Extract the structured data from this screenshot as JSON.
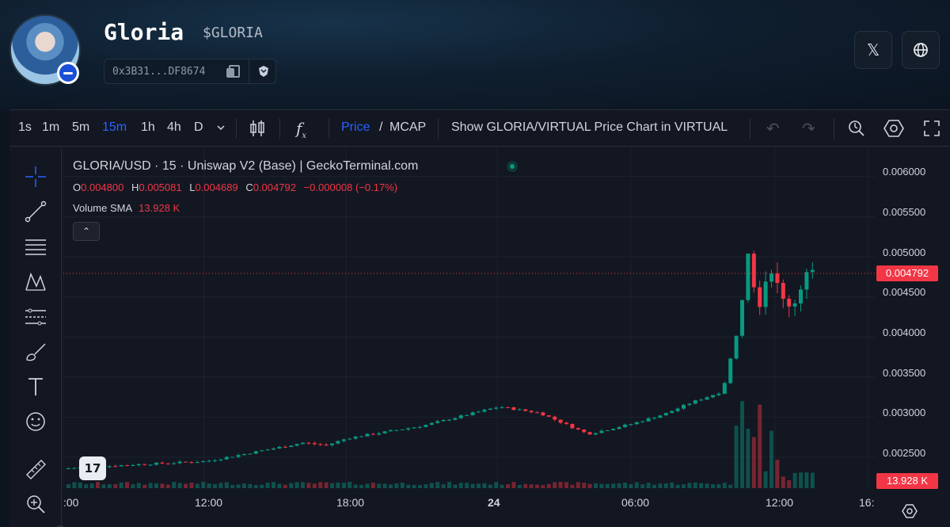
{
  "token": {
    "name": "Gloria",
    "symbol": "$GLORIA",
    "address": "0x3B31...DF8674"
  },
  "social": {
    "x_icon": "x-logo-icon",
    "web_icon": "globe-icon"
  },
  "toolbar": {
    "timeframes": [
      "1s",
      "1m",
      "5m",
      "15m",
      "1h",
      "4h",
      "D"
    ],
    "active_timeframe": "15m",
    "price_label": "Price",
    "slash": "/",
    "mcap_label": "MCAP",
    "convert_label": "Show GLORIA/VIRTUAL Price Chart in VIRTUAL"
  },
  "legend": {
    "title": "GLORIA/USD · 15 · Uniswap V2 (Base) | GeckoTerminal.com",
    "ohlc": {
      "o_key": "O",
      "o_val": "0.004800",
      "h_key": "H",
      "h_val": "0.005081",
      "l_key": "L",
      "l_val": "0.004689",
      "c_key": "C",
      "c_val": "0.004792",
      "change": "−0.000008 (−0.17%)"
    },
    "volume_label": "Volume SMA",
    "volume_value": "13.928 K"
  },
  "price_axis": {
    "labels": [
      "0.006000",
      "0.005500",
      "0.005000",
      "0.004500",
      "0.004000",
      "0.003500",
      "0.003000",
      "0.002500"
    ],
    "last_price_tag": "0.004792",
    "volume_tag": "13.928 K"
  },
  "time_axis": {
    "labels": [
      ":00",
      "12:00",
      "18:00",
      "24",
      "06:00",
      "12:00",
      "16:"
    ]
  },
  "logo_text": "17",
  "colors": {
    "up": "#089981",
    "down": "#f23645",
    "accent": "#2962ff",
    "background": "#131722"
  },
  "chart_data": {
    "type": "candlestick",
    "title": "GLORIA/USD · 15 · Uniswap V2 (Base) | GeckoTerminal.com",
    "ylim": [
      0.0021,
      0.0062
    ],
    "y_ticks": [
      0.0025,
      0.003,
      0.0035,
      0.004,
      0.0045,
      0.005,
      0.0055,
      0.006
    ],
    "series": [
      {
        "name": "GLORIA/USD",
        "close_trend": [
          {
            "t": "06:00",
            "close": 0.00236
          },
          {
            "t": "09:00",
            "close": 0.00241
          },
          {
            "t": "12:00",
            "close": 0.00245
          },
          {
            "t": "15:00",
            "close": 0.00262
          },
          {
            "t": "16:00",
            "close": 0.00268
          },
          {
            "t": "17:00",
            "close": 0.00265
          },
          {
            "t": "18:00",
            "close": 0.00274
          },
          {
            "t": "21:00",
            "close": 0.00289
          },
          {
            "t": "24",
            "close": 0.00313
          },
          {
            "t": "01:00",
            "close": 0.00305
          },
          {
            "t": "03:00",
            "close": 0.00279
          },
          {
            "t": "06:00",
            "close": 0.00292
          },
          {
            "t": "08:00",
            "close": 0.00305
          },
          {
            "t": "09:00",
            "close": 0.00318
          },
          {
            "t": "10:00",
            "close": 0.00332
          },
          {
            "t": "10:30",
            "close": 0.00412
          },
          {
            "t": "10:45",
            "close": 0.00515
          },
          {
            "t": "11:00",
            "close": 0.00438
          },
          {
            "t": "11:30",
            "close": 0.00492
          },
          {
            "t": "12:00",
            "close": 0.00445
          },
          {
            "t": "12:30",
            "close": 0.00441
          },
          {
            "t": "13:00",
            "close": 0.0048
          },
          {
            "t": "13:15",
            "close": 0.00479
          }
        ]
      }
    ],
    "last": {
      "open": 0.0048,
      "high": 0.005081,
      "low": 0.004689,
      "close": 0.004792
    },
    "volume_sma": "13.928 K"
  }
}
